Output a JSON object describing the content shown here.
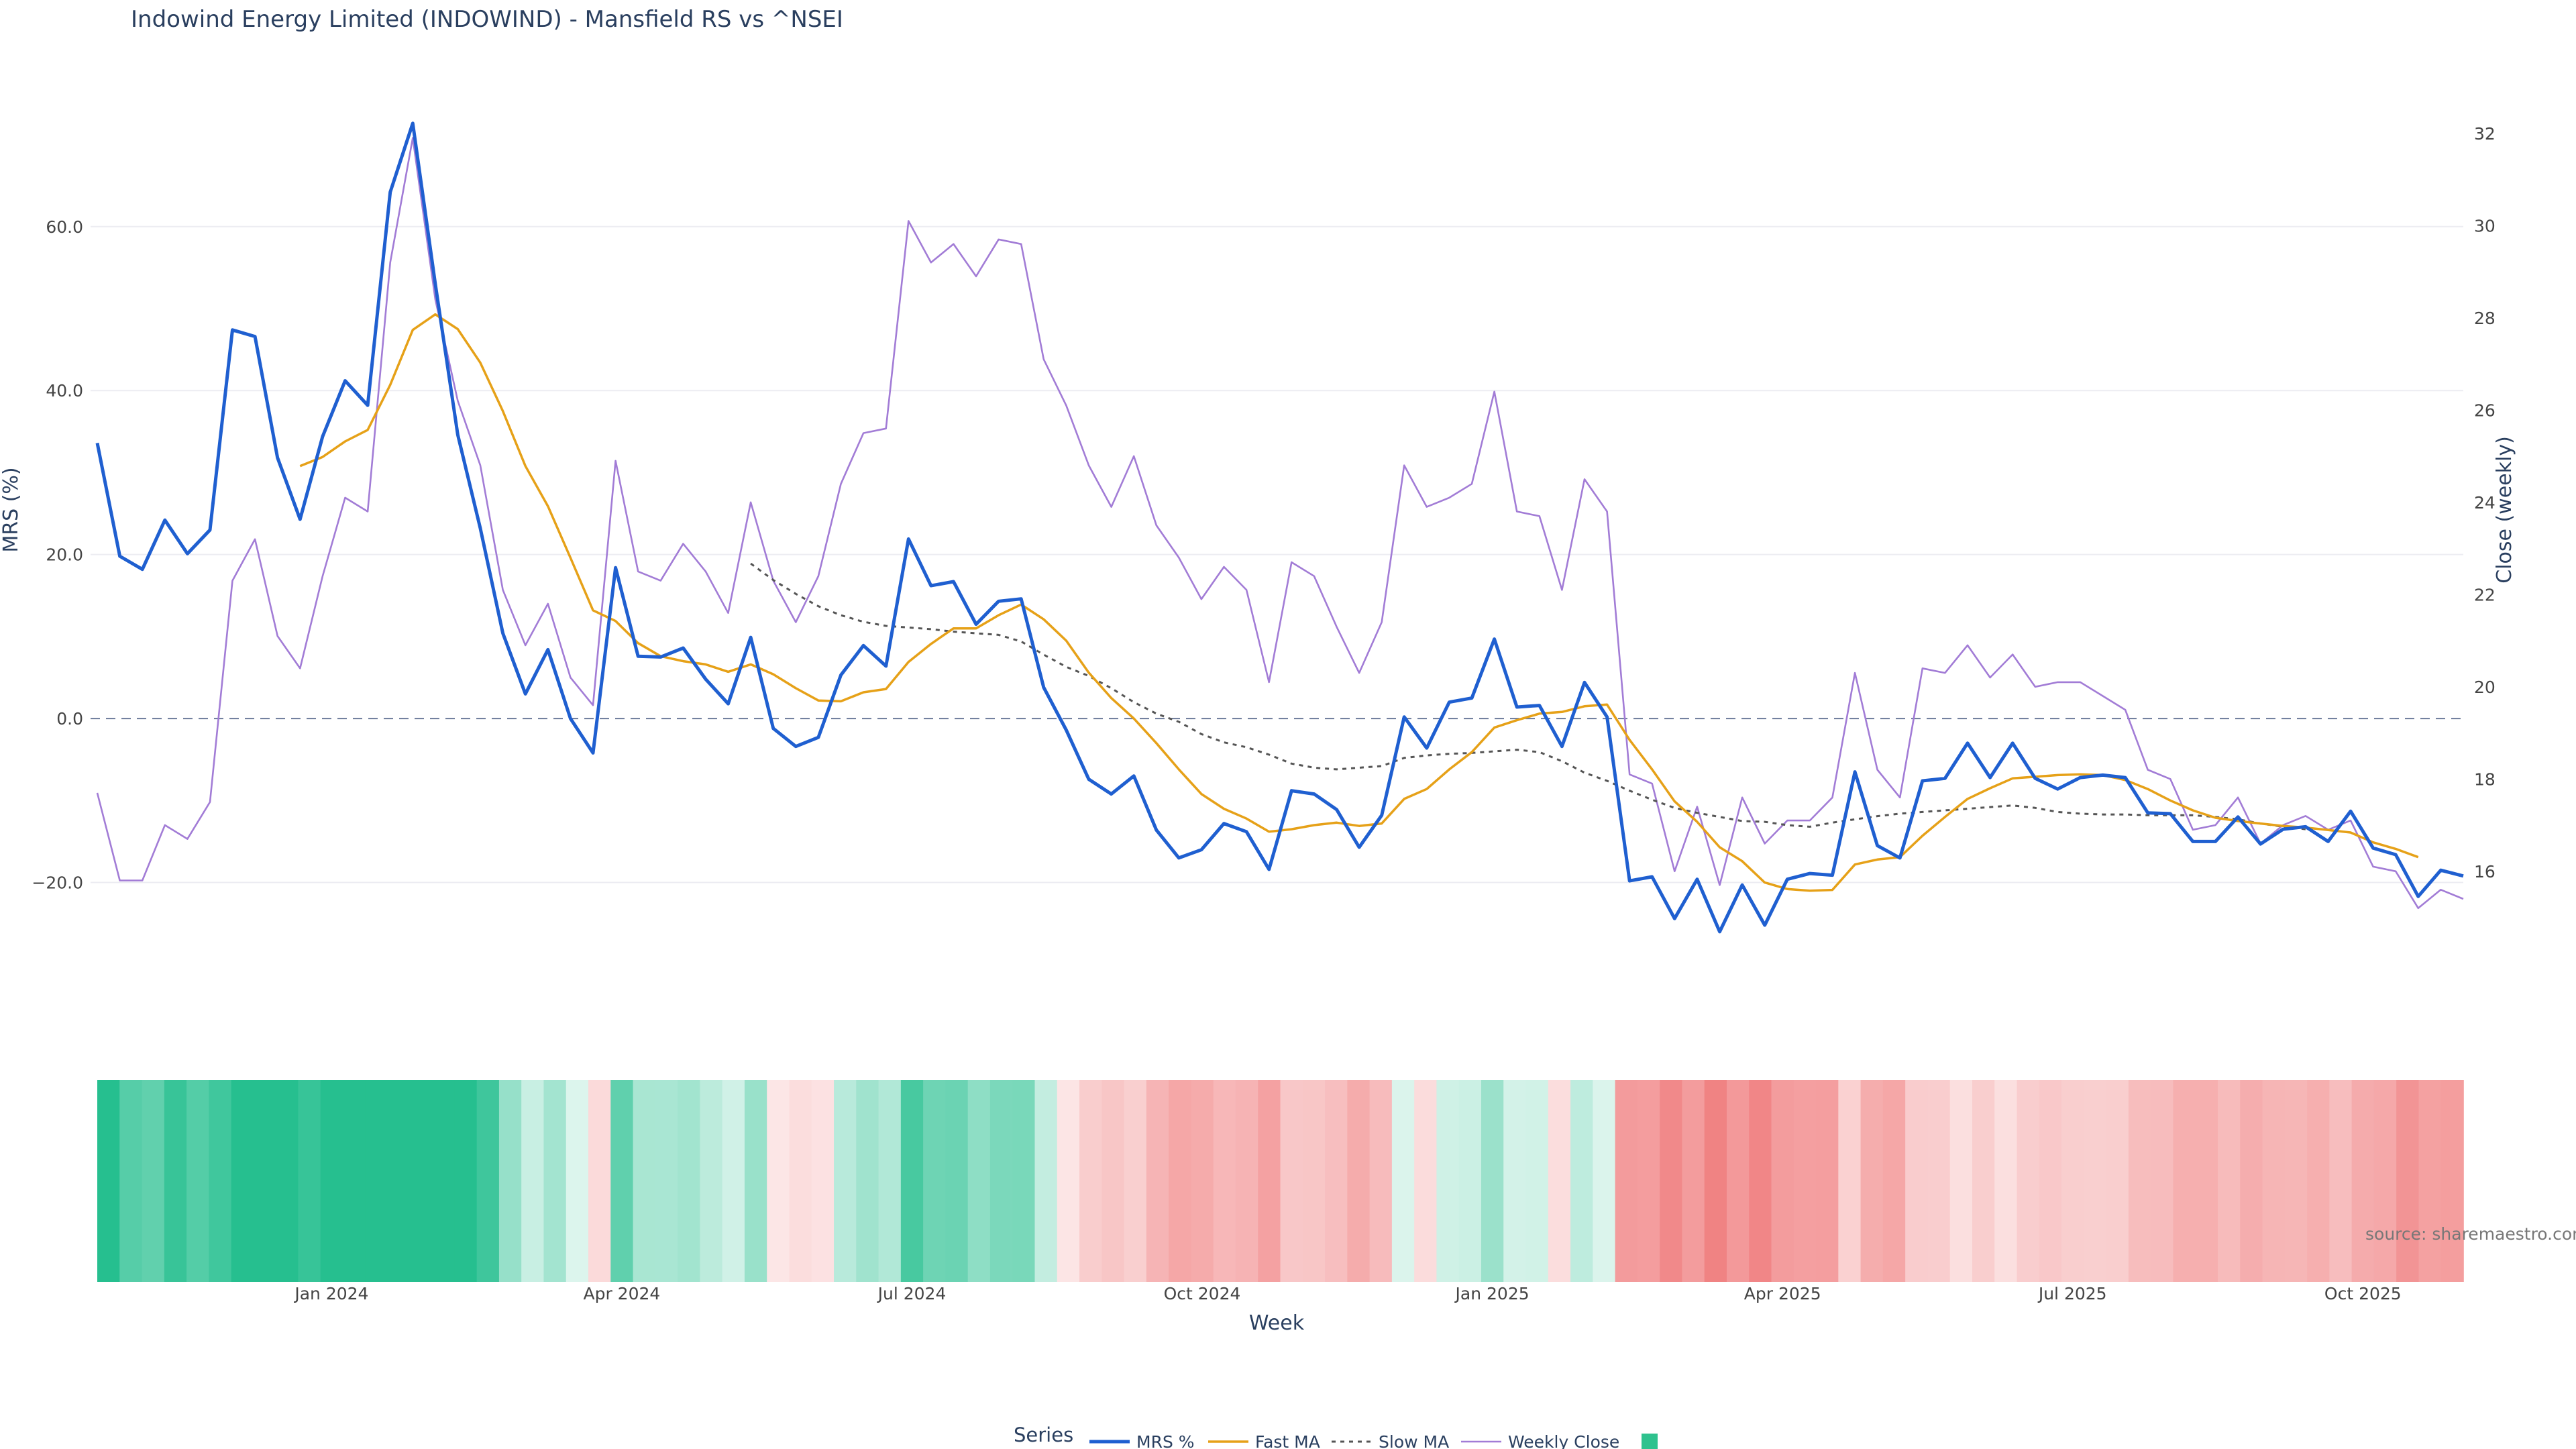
{
  "chart_data": {
    "type": "line",
    "title": "Indowind Energy Limited (INDOWIND) - Mansfield RS vs ^NSEI",
    "xlabel": "Week",
    "ylabel": "MRS (%)",
    "y2label": "Close (weekly)",
    "ylim": [
      -31,
      77
    ],
    "y2lim": [
      13.8,
      33.0
    ],
    "yticks": [
      -20,
      0,
      20,
      40,
      60
    ],
    "ytick_labels": [
      "−20.0",
      "0.0",
      "20.0",
      "40.0",
      "60.0"
    ],
    "y2ticks": [
      16,
      18,
      20,
      22,
      24,
      26,
      28,
      30,
      32
    ],
    "y2tick_labels": [
      "16",
      "18",
      "20",
      "22",
      "24",
      "26",
      "28",
      "30",
      "32"
    ],
    "xticks": [
      {
        "week": 10,
        "label": "Jan 2024"
      },
      {
        "week": 23,
        "label": "Apr 2024"
      },
      {
        "week": 36,
        "label": "Jul 2024"
      },
      {
        "week": 49,
        "label": "Oct 2024"
      },
      {
        "week": 62,
        "label": "Jan 2025"
      },
      {
        "week": 75,
        "label": "Apr 2025"
      },
      {
        "week": 88,
        "label": "Jul 2025"
      },
      {
        "week": 101,
        "label": "Oct 2025"
      }
    ],
    "zero_line": 0,
    "n_weeks": 106,
    "source": "source: sharemaestro.com",
    "colors": {
      "mrs": "#1f5fd0",
      "fast": "#e6a118",
      "slow": "#555555",
      "close": "#a27cd6",
      "zero": "#6b7a99",
      "pos": "#26bf8f",
      "neg": "#f07f80",
      "legend_swatch": "#2fc28e"
    },
    "legend": {
      "title": "Series",
      "items": [
        "MRS %",
        "Fast MA",
        "Slow MA",
        "Weekly Close",
        ""
      ]
    },
    "series": [
      {
        "name": "MRS %",
        "axis": "y",
        "values": [
          33.6,
          19.8,
          18.2,
          24.2,
          20.1,
          23.0,
          47.4,
          46.6,
          31.8,
          24.3,
          34.4,
          41.2,
          38.2,
          64.2,
          72.6,
          53.0,
          34.6,
          23.2,
          10.4,
          3.0,
          8.4,
          0.0,
          -4.2,
          18.4,
          7.6,
          7.5,
          8.6,
          4.8,
          1.8,
          9.9,
          -1.2,
          -3.4,
          -2.3,
          5.3,
          8.9,
          6.4,
          21.9,
          16.2,
          16.7,
          11.5,
          14.3,
          14.6,
          3.8,
          -1.4,
          -7.4,
          -9.2,
          -7.0,
          -13.6,
          -17.0,
          -16.0,
          -12.8,
          -13.8,
          -18.4,
          -8.8,
          -9.2,
          -11.1,
          -15.7,
          -11.8,
          0.2,
          -3.6,
          2.0,
          2.5,
          9.7,
          1.4,
          1.6,
          -3.4,
          4.4,
          0.2,
          -19.8,
          -19.3,
          -24.4,
          -19.6,
          -26.0,
          -20.3,
          -25.2,
          -19.6,
          -18.9,
          -19.1,
          -6.5,
          -15.5,
          -17.0,
          -7.6,
          -7.3,
          -3.0,
          -7.2,
          -3.0,
          -7.3,
          -8.6,
          -7.2,
          -6.9,
          -7.2,
          -11.5,
          -11.6,
          -15.0,
          -15.0,
          -12.0,
          -15.3,
          -13.5,
          -13.2,
          -15.0,
          -11.3,
          -15.8,
          -16.6,
          -21.7,
          -18.5,
          -19.2
        ]
      },
      {
        "name": "Fast MA",
        "axis": "y",
        "start": 9,
        "values": [
          30.8,
          31.9,
          33.8,
          35.2,
          40.7,
          47.4,
          49.3,
          47.5,
          43.4,
          37.5,
          30.8,
          25.9,
          19.6,
          13.2,
          11.9,
          9.2,
          7.6,
          7.0,
          6.6,
          5.7,
          6.6,
          5.4,
          3.7,
          2.2,
          2.1,
          3.2,
          3.6,
          6.9,
          9.1,
          11.0,
          11.0,
          12.6,
          13.9,
          12.1,
          9.5,
          5.6,
          2.5,
          0.0,
          -3.0,
          -6.2,
          -9.2,
          -11.0,
          -12.2,
          -13.8,
          -13.5,
          -13.0,
          -12.7,
          -13.1,
          -12.8,
          -9.8,
          -8.6,
          -6.2,
          -4.1,
          -1.1,
          -0.2,
          0.6,
          0.8,
          1.5,
          1.7,
          -2.6,
          -6.2,
          -10.1,
          -12.6,
          -15.7,
          -17.4,
          -20.0,
          -20.8,
          -21.0,
          -20.9,
          -17.8,
          -17.2,
          -16.9,
          -14.3,
          -12.0,
          -9.8,
          -8.5,
          -7.3,
          -7.1,
          -6.9,
          -6.8,
          -6.9,
          -7.5,
          -8.6,
          -10.0,
          -11.2,
          -12.1,
          -12.5,
          -12.8,
          -13.1,
          -13.3,
          -13.6,
          -13.9,
          -15.1,
          -15.9,
          -16.9
        ]
      },
      {
        "name": "Slow MA",
        "axis": "y",
        "start": 29,
        "values": [
          18.9,
          16.9,
          15.2,
          13.7,
          12.6,
          11.8,
          11.3,
          11.1,
          10.9,
          10.6,
          10.4,
          10.2,
          9.4,
          7.8,
          6.3,
          5.2,
          3.7,
          2.0,
          0.6,
          -0.4,
          -1.9,
          -2.9,
          -3.5,
          -4.4,
          -5.5,
          -6.0,
          -6.2,
          -6.0,
          -5.8,
          -4.8,
          -4.5,
          -4.3,
          -4.2,
          -4.0,
          -3.8,
          -4.1,
          -5.2,
          -6.6,
          -7.6,
          -8.8,
          -9.9,
          -10.9,
          -11.5,
          -12.0,
          -12.5,
          -12.6,
          -13.0,
          -13.2,
          -12.7,
          -12.3,
          -11.9,
          -11.6,
          -11.4,
          -11.2,
          -11.0,
          -10.8,
          -10.6,
          -10.9,
          -11.4,
          -11.6,
          -11.7,
          -11.7,
          -11.8,
          -11.8,
          -11.8,
          -12.0,
          -12.3,
          -12.8,
          -13.2,
          -13.5
        ]
      },
      {
        "name": "Weekly Close",
        "axis": "y2",
        "values": [
          17.7,
          15.8,
          15.8,
          17.0,
          16.7,
          17.5,
          22.3,
          23.2,
          21.1,
          20.4,
          22.4,
          24.1,
          23.8,
          29.2,
          31.9,
          28.4,
          26.2,
          24.8,
          22.1,
          20.9,
          21.8,
          20.2,
          19.6,
          24.9,
          22.5,
          22.3,
          23.1,
          22.5,
          21.6,
          24.0,
          22.3,
          21.4,
          22.4,
          24.4,
          25.5,
          25.6,
          30.1,
          29.2,
          29.6,
          28.9,
          29.7,
          29.6,
          27.1,
          26.1,
          24.8,
          23.9,
          25.0,
          23.5,
          22.8,
          21.9,
          22.6,
          22.1,
          20.1,
          22.7,
          22.4,
          21.3,
          20.3,
          21.4,
          24.8,
          23.9,
          24.1,
          24.4,
          26.4,
          23.8,
          23.7,
          22.1,
          24.5,
          23.8,
          18.1,
          17.9,
          16.0,
          17.4,
          15.7,
          17.6,
          16.6,
          17.1,
          17.1,
          17.6,
          20.3,
          18.2,
          17.6,
          20.4,
          20.3,
          20.9,
          20.2,
          20.7,
          20.0,
          20.1,
          20.1,
          19.8,
          19.5,
          18.2,
          18.0,
          16.9,
          17.0,
          17.6,
          16.6,
          17.0,
          17.2,
          16.9,
          17.1,
          16.1,
          16.0,
          15.2,
          15.6,
          15.4
        ]
      }
    ]
  }
}
